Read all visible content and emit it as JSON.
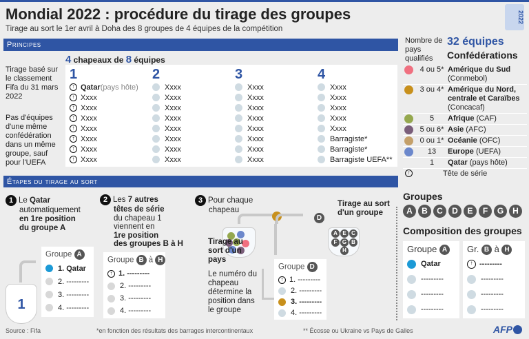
{
  "title": "Mondial 2022 : procédure du tirage des groupes",
  "subtitle": "Tirage au sort le 1er avril à Doha des 8 groupes de 4 équipes de la compétition",
  "logo_year": "2022",
  "principes": {
    "header": "Principes",
    "pots_heading_a": "4",
    "pots_heading_b": " chapeaux de ",
    "pots_heading_c": "8",
    "pots_heading_d": " équipes",
    "note1": "Tirage basé sur le classement Fifa du 31 mars 2022",
    "note2": "Pas d'équipes d'une même confédération dans un même groupe, sauf pour l'UEFA",
    "pots": [
      {
        "number": "1",
        "teams": [
          "Qatar",
          "Xxxx",
          "Xxxx",
          "Xxxx",
          "Xxxx",
          "Xxxx",
          "Xxxx",
          "Xxxx"
        ],
        "host_suffix": " (pays hôte)"
      },
      {
        "number": "2",
        "teams": [
          "Xxxx",
          "Xxxx",
          "Xxxx",
          "Xxxx",
          "Xxxx",
          "Xxxx",
          "Xxxx",
          "Xxxx"
        ]
      },
      {
        "number": "3",
        "teams": [
          "Xxxx",
          "Xxxx",
          "Xxxx",
          "Xxxx",
          "Xxxx",
          "Xxxx",
          "Xxxx",
          "Xxxx"
        ]
      },
      {
        "number": "4",
        "teams": [
          "Xxxx",
          "Xxxx",
          "Xxxx",
          "Xxxx",
          "Xxxx",
          "Barragiste*",
          "Barragiste*",
          "Barragiste UEFA**"
        ]
      }
    ]
  },
  "etapes": {
    "header": "Étapes du tirage au sort",
    "step1": {
      "n": "1",
      "l1a": "Le ",
      "l1b": "Qatar",
      "l2": "automatiquement",
      "l3": "en 1re position",
      "l4": "du groupe A",
      "pot": "1",
      "group_label": "Groupe",
      "group_letter": "A",
      "rows": [
        "1. Qatar",
        "2. ---------",
        "3. ---------",
        "4. ---------"
      ]
    },
    "step2": {
      "n": "2",
      "l1a": "Les ",
      "l1b": "7 autres",
      "l2": "têtes de série",
      "l3": "du chapeau 1",
      "l4": "viennent en",
      "l5": "1re position",
      "l6": "des groupes B à H",
      "group_label": "Groupe",
      "letter_from": "B",
      "to": "à",
      "letter_to": "H",
      "rows": [
        "1. ---------",
        "2. ---------",
        "3. ---------",
        "4. ---------"
      ]
    },
    "step3": {
      "n": "3",
      "l1": "Pour chaque",
      "l2": "chapeau",
      "draw_country": "Tirage au sort d'un pays",
      "draw_group": "Tirage au sort d'un groupe",
      "explain": "Le numéro du chapeau détermine la position dans le groupe",
      "drawn_letter": "D",
      "group_label": "Groupe",
      "group_letter": "D",
      "rows": [
        "1. ---------",
        "2. ---------",
        "3. ---------",
        "4. ---------"
      ],
      "bowl_letters": [
        "A",
        "E",
        "C",
        "F",
        "G",
        "B",
        "H"
      ]
    }
  },
  "legend": {
    "count_header": "Nombre de pays qualifiés",
    "total": "32 équipes",
    "conf_header": "Confédérations",
    "items": [
      {
        "count": "4 ou 5*",
        "name": "Amérique du Sud",
        "sub": "(Conmebol)",
        "color": "#f07080"
      },
      {
        "count": "3 ou 4*",
        "name": "Amérique du Nord, centrale et Caraïbes",
        "sub": "(Concacaf)",
        "color": "#c8901c"
      },
      {
        "count": "5",
        "name": "Afrique",
        "sub": " (CAF)",
        "color": "#95a84e"
      },
      {
        "count": "5 ou 6*",
        "name": "Asie",
        "sub": " (AFC)",
        "color": "#7a5e7a"
      },
      {
        "count": "0 ou 1*",
        "name": "Océanie",
        "sub": " (OFC)",
        "color": "#c4a06a"
      },
      {
        "count": "13",
        "name": "Europe",
        "sub": " (UEFA)",
        "color": "#6c88cc"
      },
      {
        "count": "1",
        "name": "Qatar",
        "sub": " (pays hôte)",
        "color": ""
      }
    ],
    "seed_label": "Tête de série"
  },
  "groups": {
    "title": "Groupes",
    "letters": [
      "A",
      "B",
      "C",
      "D",
      "E",
      "F",
      "G",
      "H"
    ]
  },
  "composition": {
    "title": "Composition des groupes",
    "a_label": "Groupe",
    "a_letter": "A",
    "a_first": "Qatar",
    "b_label": "Gr.",
    "b_from": "B",
    "b_to": "à",
    "b_letter": "H",
    "dash": "---------"
  },
  "footer": {
    "source": "Source : Fifa",
    "note1": "*en fonction des résultats des barrages intercontinentaux",
    "note2": "** Écosse ou Ukraine vs Pays de Galles",
    "brand": "AFP"
  }
}
